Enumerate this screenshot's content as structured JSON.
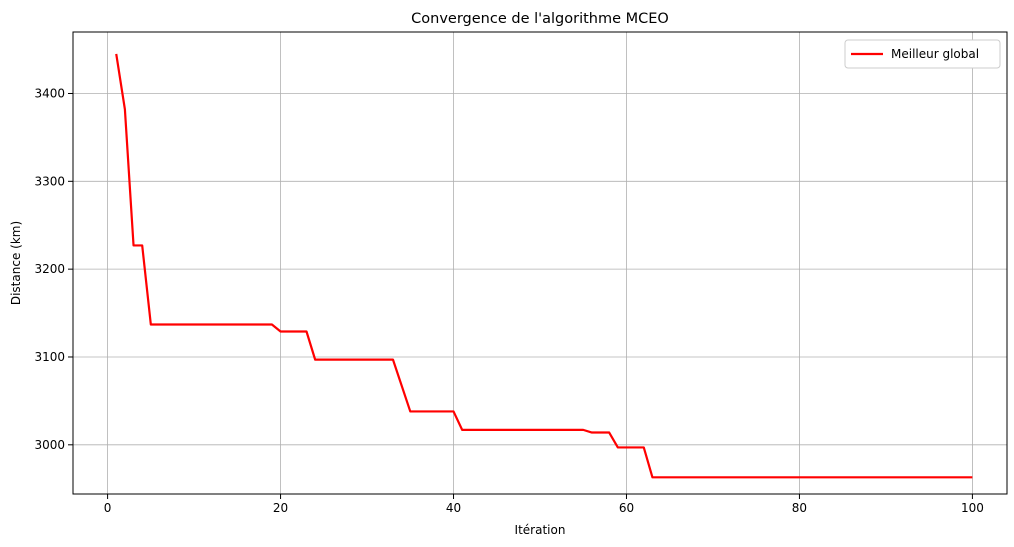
{
  "chart_data": {
    "type": "line",
    "title": "Convergence de l'algorithme MCEO",
    "xlabel": "Itération",
    "ylabel": "Distance (km)",
    "xlim": [
      -4,
      104
    ],
    "ylim": [
      2944,
      3470
    ],
    "xticks": [
      0,
      20,
      40,
      60,
      80,
      100
    ],
    "yticks": [
      3000,
      3100,
      3200,
      3300,
      3400
    ],
    "grid": true,
    "legend_position": "top-right",
    "series": [
      {
        "name": "Meilleur global",
        "color": "#ff0000",
        "points": [
          [
            1,
            3445
          ],
          [
            2,
            3382
          ],
          [
            3,
            3227
          ],
          [
            4,
            3227
          ],
          [
            5,
            3137
          ],
          [
            19,
            3137
          ],
          [
            20,
            3129
          ],
          [
            23,
            3129
          ],
          [
            24,
            3097
          ],
          [
            33,
            3097
          ],
          [
            35,
            3038
          ],
          [
            40,
            3038
          ],
          [
            41,
            3017
          ],
          [
            55,
            3017
          ],
          [
            56,
            3014
          ],
          [
            58,
            3014
          ],
          [
            59,
            2997
          ],
          [
            62,
            2997
          ],
          [
            63,
            2963
          ],
          [
            100,
            2963
          ]
        ]
      }
    ]
  }
}
